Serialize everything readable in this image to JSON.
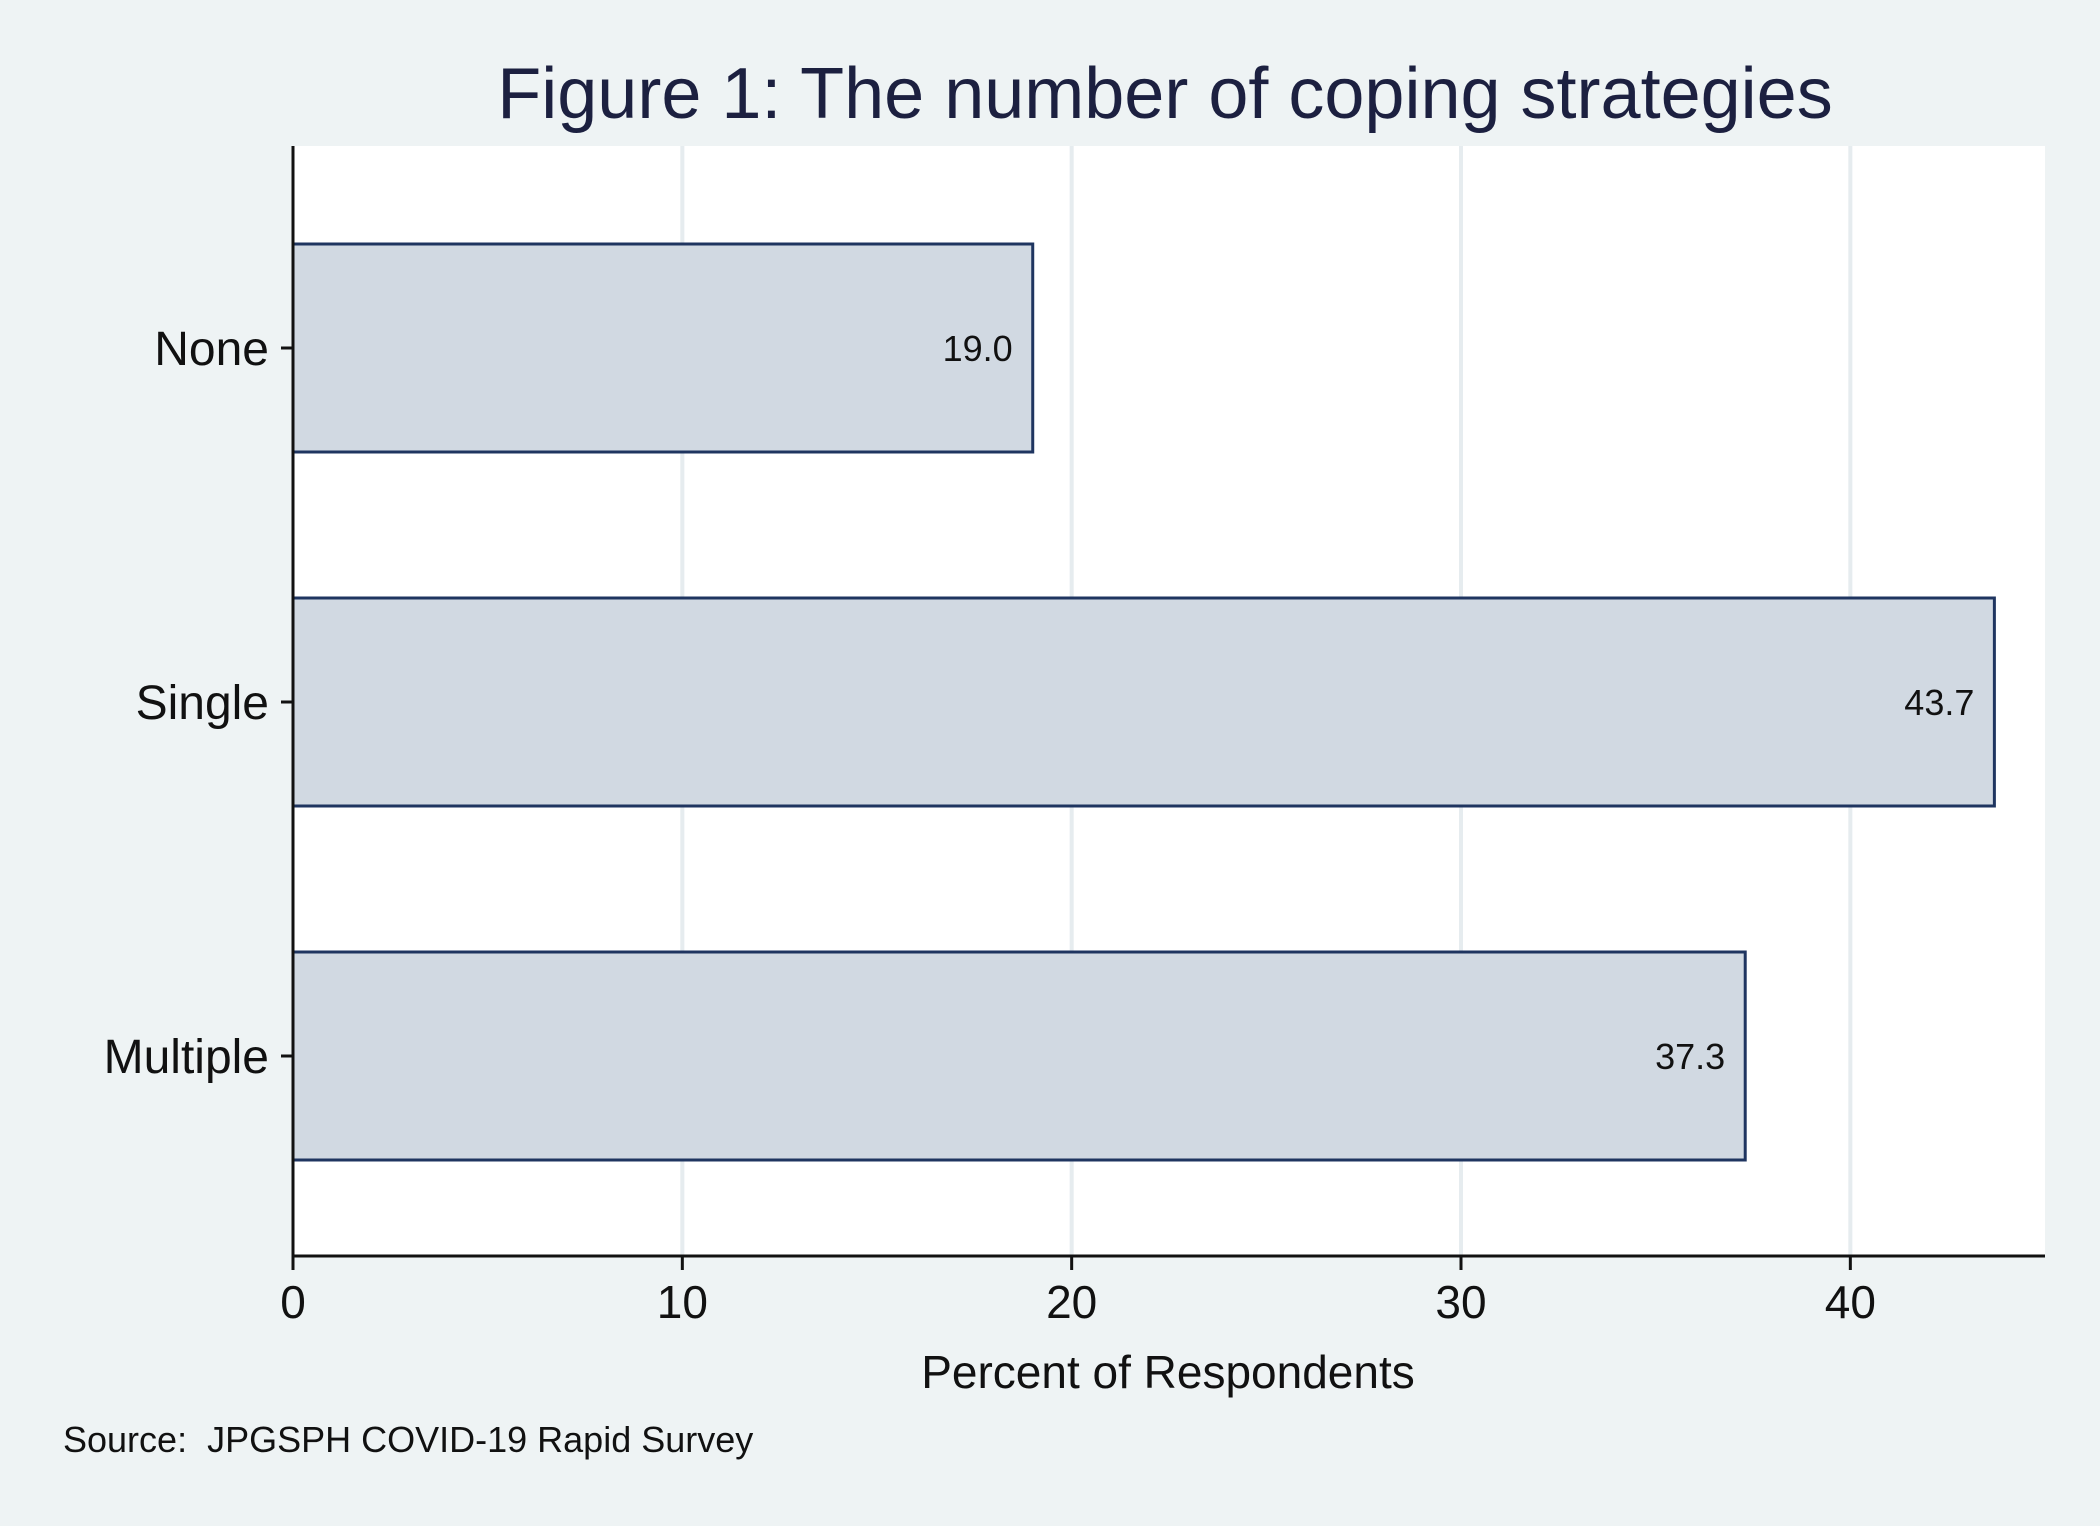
{
  "chart_data": {
    "type": "bar",
    "orientation": "horizontal",
    "title": "Figure 1: The number of coping strategies",
    "categories": [
      "None",
      "Single",
      "Multiple"
    ],
    "values": [
      19.0,
      43.7,
      37.3
    ],
    "value_labels": [
      "19.0",
      "43.7",
      "37.3"
    ],
    "xlabel": "Percent of Respondents",
    "ylabel": "",
    "xlim": [
      0,
      45
    ],
    "xticks": [
      0,
      10,
      20,
      30,
      40
    ],
    "xtick_labels": [
      "0",
      "10",
      "20",
      "30",
      "40"
    ],
    "grid": true,
    "note": "Source:  JPGSPH COVID-19 Rapid Survey",
    "colors": {
      "background": "#eef3f4",
      "plot_background": "#ffffff",
      "bar_fill": "#d1d9e2",
      "bar_stroke": "#1f3560",
      "grid": "#e6ecef",
      "axis": "#111111",
      "title": "#1c2040"
    }
  }
}
